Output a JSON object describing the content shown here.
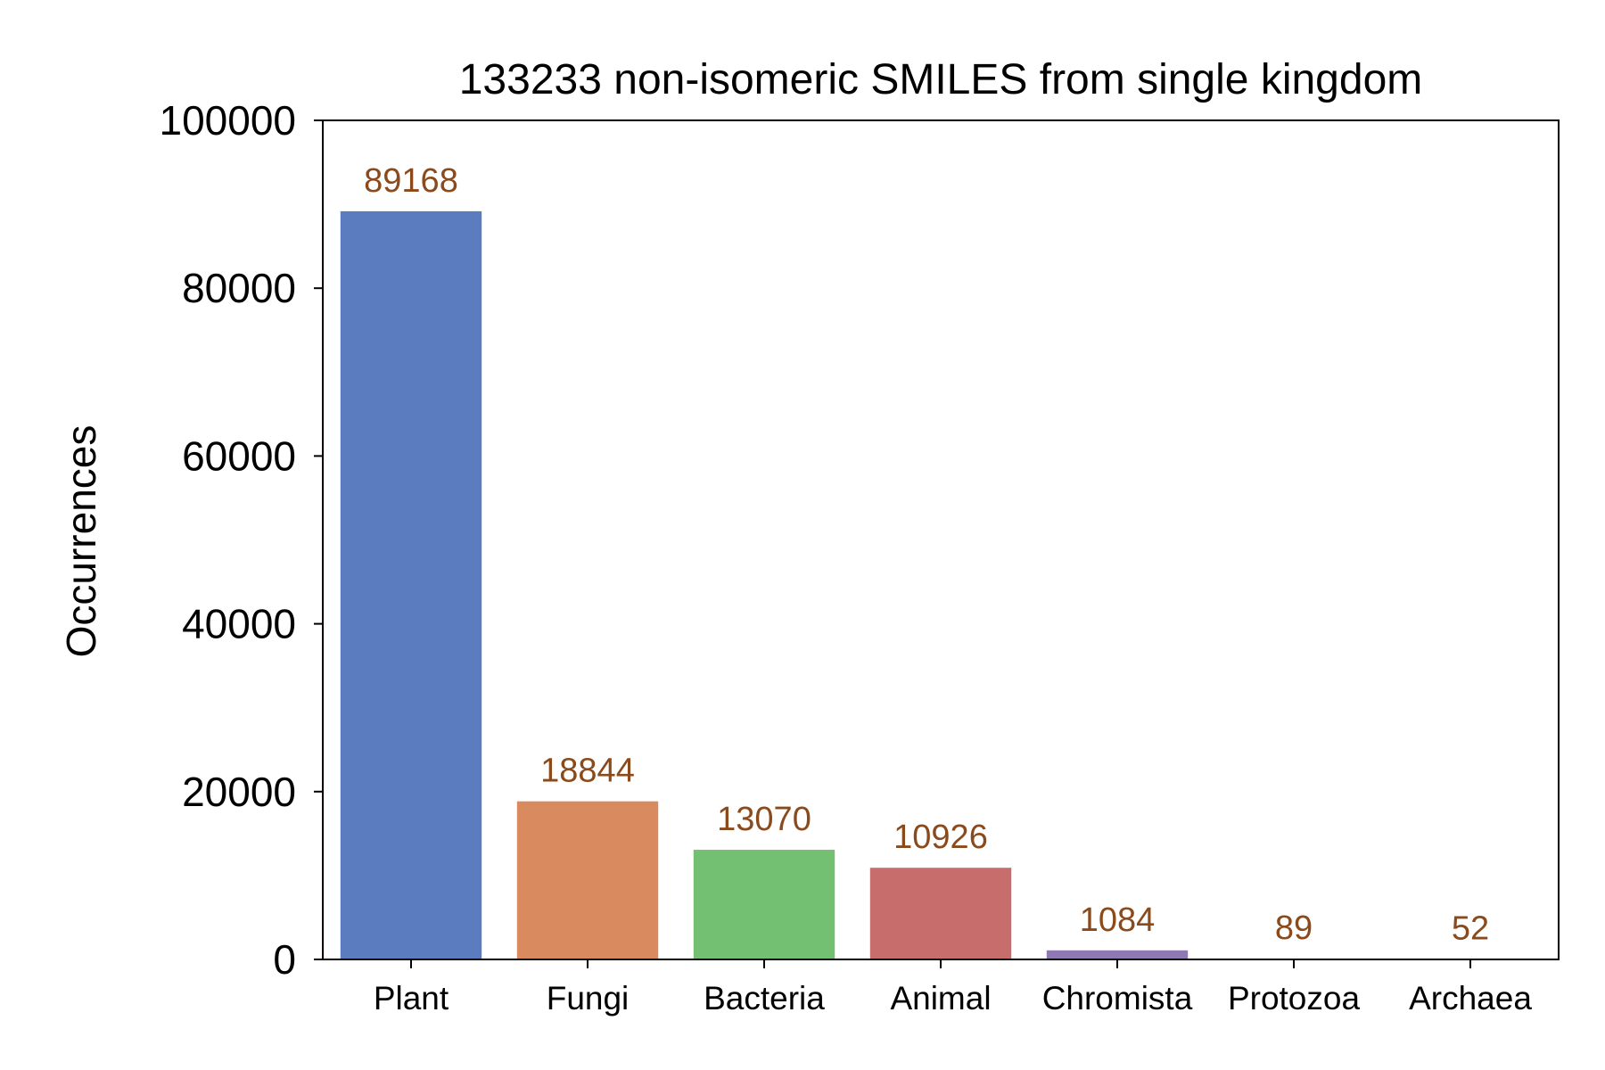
{
  "chart_data": {
    "type": "bar",
    "title": "133233 non-isomeric SMILES from single kingdom",
    "xlabel": "",
    "ylabel": "Occurrences",
    "categories": [
      "Plant",
      "Fungi",
      "Bacteria",
      "Animal",
      "Chromista",
      "Protozoa",
      "Archaea"
    ],
    "values": [
      89168,
      18844,
      13070,
      10926,
      1084,
      89,
      52
    ],
    "data_labels": [
      "89168",
      "18844",
      "13070",
      "10926",
      "1084",
      "89",
      "52"
    ],
    "colors": [
      "#5b7cbe",
      "#d98a5f",
      "#74c073",
      "#c76d6c",
      "#8f79b4",
      "#937465",
      "#d08dc6"
    ],
    "label_color": "#8b4a1c",
    "ylim": [
      0,
      100000
    ],
    "yticks": [
      "0",
      "20000",
      "40000",
      "60000",
      "80000",
      "100000"
    ],
    "grid": false,
    "legend": "none"
  }
}
